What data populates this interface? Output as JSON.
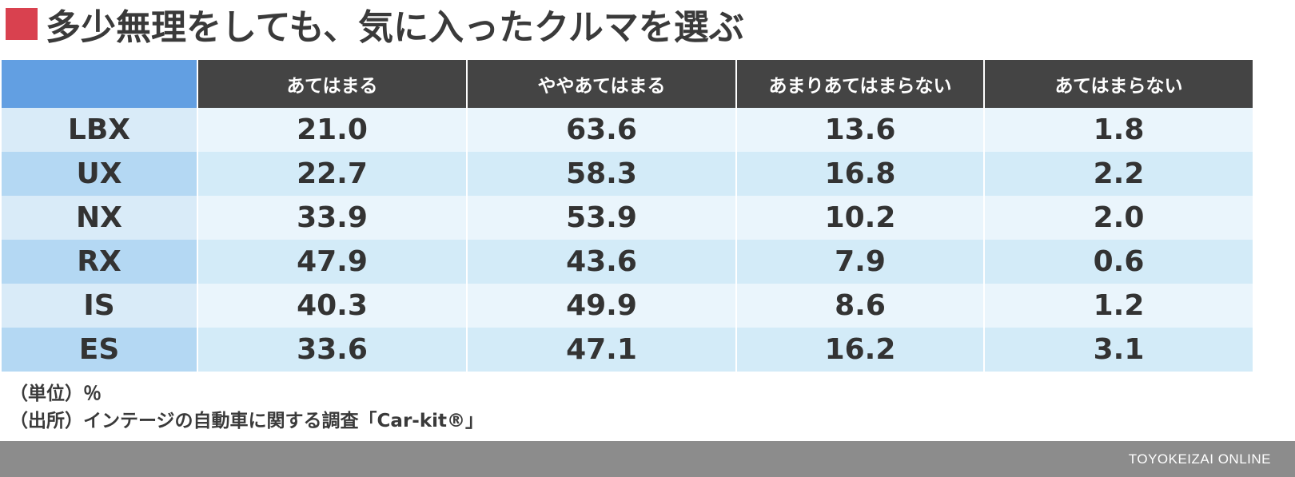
{
  "title": "多少無理をしても、気に入ったクルマを選ぶ",
  "colors": {
    "title_mark": "#d9414f",
    "header_corner": "#629fe2",
    "header_bg": "#444444",
    "row_label_odd": "#d9ebf8",
    "row_label_even": "#b4d8f3",
    "row_cell_odd": "#eaf5fc",
    "row_cell_even": "#d3ebf8",
    "footer_bg": "#8c8c8c"
  },
  "table": {
    "corner": "",
    "headers": [
      "あてはまる",
      "ややあてはまる",
      "あまりあてはまらない",
      "あてはまらない"
    ],
    "rows": [
      {
        "label": "LBX",
        "values": [
          "21.0",
          "63.6",
          "13.6",
          "1.8"
        ]
      },
      {
        "label": "UX",
        "values": [
          "22.7",
          "58.3",
          "16.8",
          "2.2"
        ]
      },
      {
        "label": "NX",
        "values": [
          "33.9",
          "53.9",
          "10.2",
          "2.0"
        ]
      },
      {
        "label": "RX",
        "values": [
          "47.9",
          "43.6",
          "7.9",
          "0.6"
        ]
      },
      {
        "label": "IS",
        "values": [
          "40.3",
          "49.9",
          "8.6",
          "1.2"
        ]
      },
      {
        "label": "ES",
        "values": [
          "33.6",
          "47.1",
          "16.2",
          "3.1"
        ]
      }
    ]
  },
  "chart_data": {
    "type": "table",
    "title": "多少無理をしても、気に入ったクルマを選ぶ",
    "columns": [
      "あてはまる",
      "ややあてはまる",
      "あまりあてはまらない",
      "あてはまらない"
    ],
    "rows": [
      "LBX",
      "UX",
      "NX",
      "RX",
      "IS",
      "ES"
    ],
    "values": [
      [
        21.0,
        63.6,
        13.6,
        1.8
      ],
      [
        22.7,
        58.3,
        16.8,
        2.2
      ],
      [
        33.9,
        53.9,
        10.2,
        2.0
      ],
      [
        47.9,
        43.6,
        7.9,
        0.6
      ],
      [
        40.3,
        49.9,
        8.6,
        1.2
      ],
      [
        33.6,
        47.1,
        16.2,
        3.1
      ]
    ],
    "unit": "%"
  },
  "notes": {
    "unit": "（単位）％",
    "source": "（出所）インテージの自動車に関する調査「Car-kit®」"
  },
  "footer": {
    "brand": "TOYOKEIZAI ONLINE"
  }
}
